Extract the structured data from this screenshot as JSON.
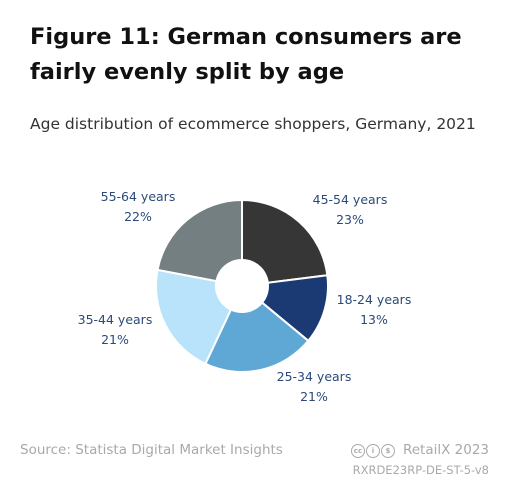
{
  "title": "Figure 11: German consumers are fairly evenly split by age",
  "subtitle": "Age distribution of ecommerce shoppers, Germany, 2021",
  "chart_data": {
    "type": "pie",
    "slices": [
      {
        "label": "45-54 years",
        "value": 23,
        "value_label": "23%",
        "color": "#363636",
        "label_color": "#2b4a7a"
      },
      {
        "label": "18-24 years",
        "value": 13,
        "value_label": "13%",
        "color": "#1b3a73",
        "label_color": "#2b4a7a"
      },
      {
        "label": "25-34 years",
        "value": 21,
        "value_label": "21%",
        "color": "#5fa8d6",
        "label_color": "#2b4a7a"
      },
      {
        "label": "35-44 years",
        "value": 21,
        "value_label": "21%",
        "color": "#b8e3fb",
        "label_color": "#2b4a7a"
      },
      {
        "label": "55-64 years",
        "value": 22,
        "value_label": "22%",
        "color": "#737f80",
        "label_color": "#2b4a7a"
      }
    ],
    "donut": true,
    "start_angle_deg": 0,
    "direction": "clockwise"
  },
  "footer": {
    "source": "Source: Statista Digital Market Insights",
    "brand": "RetailX 2023",
    "code": "RXRDE23RP-DE-ST-5-v8",
    "license_icons": [
      "cc-icon",
      "by-icon",
      "nc-icon"
    ]
  }
}
